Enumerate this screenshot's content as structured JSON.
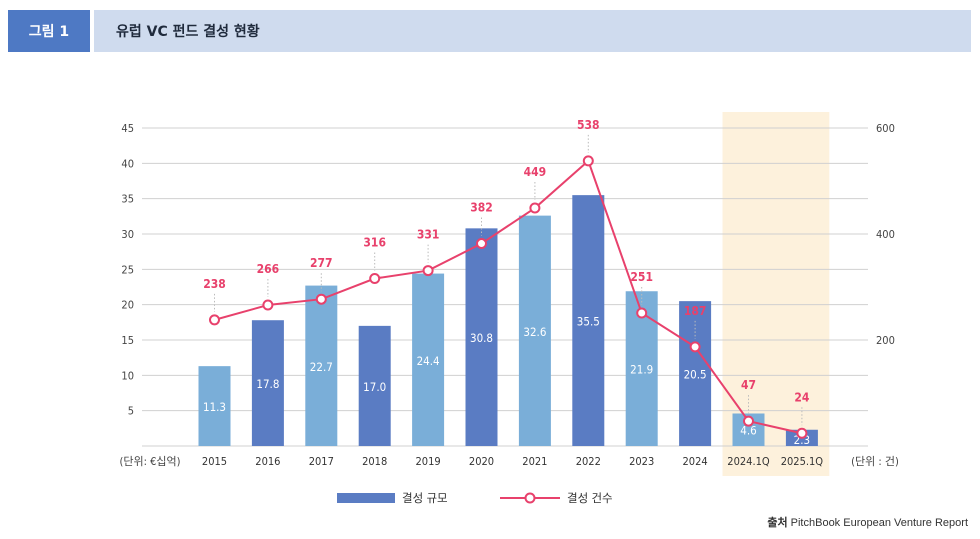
{
  "header": {
    "figure_label": "그림 1",
    "title": "유럽 VC 펀드 결성 현황"
  },
  "source": {
    "label": "출처",
    "text": "PitchBook European Venture Report"
  },
  "colors": {
    "bar_dark": "#5a7cc3",
    "bar_light": "#7aaed8",
    "line": "#e8416c",
    "highlight_bg": "#fdf1dc",
    "grid": "#d0d0d0"
  },
  "chart_data": {
    "type": "bar",
    "categories": [
      "2015",
      "2016",
      "2017",
      "2018",
      "2019",
      "2020",
      "2021",
      "2022",
      "2023",
      "2024",
      "2024.1Q",
      "2025.1Q"
    ],
    "series": [
      {
        "name": "결성 규모",
        "axis": "left",
        "type": "bar",
        "values": [
          11.3,
          17.8,
          22.7,
          17.0,
          24.4,
          30.8,
          32.6,
          35.5,
          21.9,
          20.5,
          4.6,
          2.3
        ],
        "labels": [
          "11.3",
          "17.8",
          "22.7",
          "17.0",
          "24.4",
          "30.8",
          "32.6",
          "35.5",
          "21.9",
          "20.5",
          "4.6",
          "2.3"
        ],
        "shade": [
          "light",
          "dark",
          "light",
          "dark",
          "light",
          "dark",
          "light",
          "dark",
          "light",
          "dark",
          "light",
          "dark"
        ]
      },
      {
        "name": "결성 건수",
        "axis": "right",
        "type": "line",
        "values": [
          238,
          266,
          277,
          316,
          331,
          382,
          449,
          538,
          251,
          187,
          47,
          24
        ]
      }
    ],
    "left_axis": {
      "ticks": [
        5,
        10,
        15,
        20,
        25,
        30,
        35,
        40,
        45
      ],
      "ylim": [
        0,
        45
      ],
      "unit_label": "(단위: €십억)"
    },
    "right_axis": {
      "ticks": [
        200,
        400,
        600
      ],
      "ylim": [
        0,
        600
      ],
      "unit_label": "(단위 : 건)"
    },
    "highlight_categories": [
      "2024.1Q",
      "2025.1Q"
    ],
    "grid": true,
    "legend_position": "bottom-center"
  }
}
